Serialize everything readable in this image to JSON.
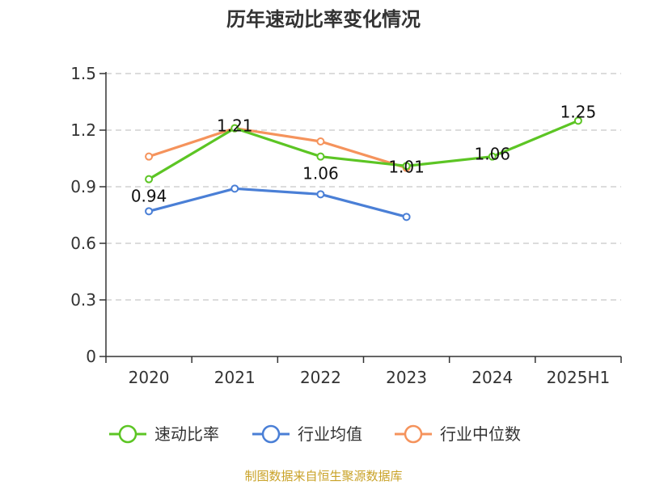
{
  "chart_data": {
    "type": "line",
    "title": "历年速动比率变化情况",
    "categories": [
      "2020",
      "2021",
      "2022",
      "2023",
      "2024",
      "2025H1"
    ],
    "yticks": [
      "0",
      "0.3",
      "0.6",
      "0.9",
      "1.2",
      "1.5"
    ],
    "ylim": [
      0,
      1.5
    ],
    "grid": true,
    "legend_position": "bottom",
    "series": [
      {
        "name": "速动比率",
        "color": "#5cc524",
        "values": [
          0.94,
          1.21,
          1.06,
          1.01,
          1.06,
          1.25
        ],
        "labels": [
          "0.94",
          "1.21",
          "1.06",
          "1.01",
          "1.06",
          "1.25"
        ]
      },
      {
        "name": "行业均值",
        "color": "#4a7fd6",
        "values": [
          0.77,
          0.89,
          0.86,
          0.74,
          null,
          null
        ]
      },
      {
        "name": "行业中位数",
        "color": "#f5935c",
        "values": [
          1.06,
          1.21,
          1.14,
          1.0,
          null,
          null
        ]
      }
    ],
    "source": "制图数据来自恒生聚源数据库"
  }
}
